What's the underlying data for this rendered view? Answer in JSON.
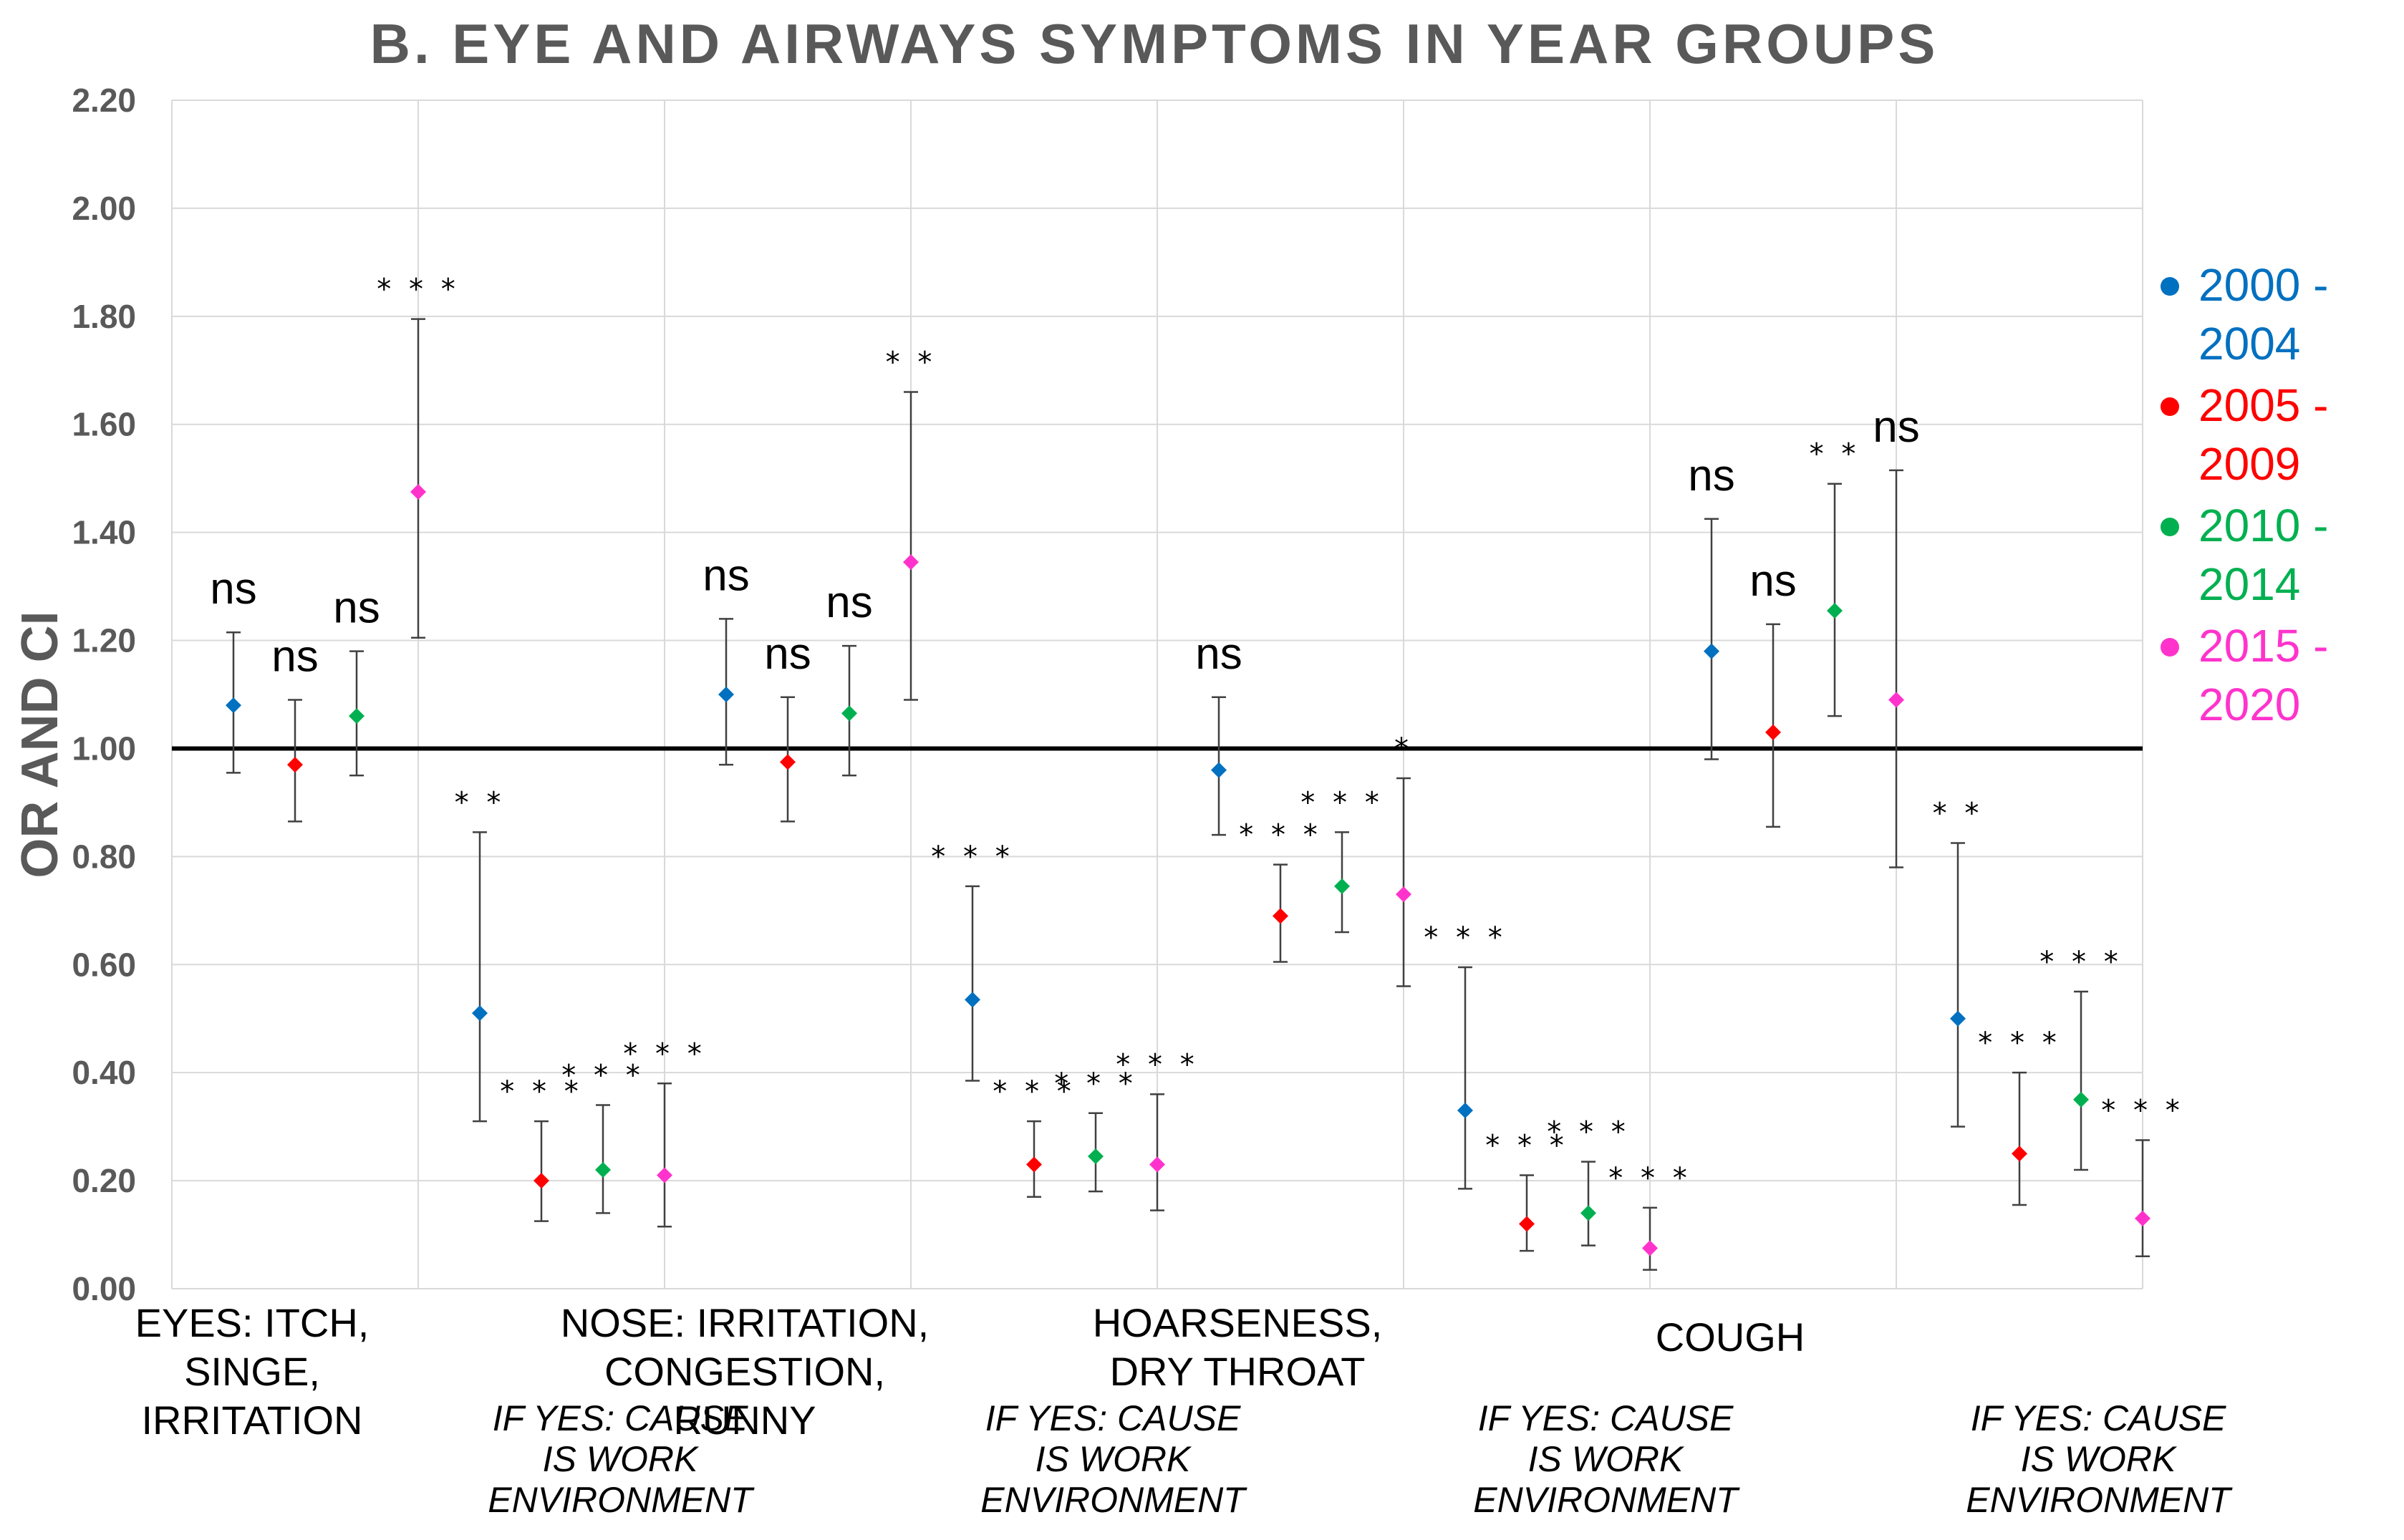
{
  "chart_data": {
    "type": "scatter",
    "title": "B. EYE AND AIRWAYS SYMPTOMS IN YEAR GROUPS",
    "ylabel": "OR AND CI",
    "xlabel": "",
    "ylim": [
      0,
      2.2
    ],
    "yticks": [
      "0.00",
      "0.20",
      "0.40",
      "0.60",
      "0.80",
      "1.00",
      "1.20",
      "1.40",
      "1.60",
      "1.80",
      "2.00",
      "2.20"
    ],
    "reference_line": 1.0,
    "grid": true,
    "legend_position": "right",
    "categories": [
      {
        "lines": [
          "EYES: ITCH,",
          "SINGE,",
          "IRRITATION"
        ],
        "italic": false
      },
      {
        "lines": [
          "IF YES: CAUSE",
          "IS WORK",
          "ENVIRONMENT"
        ],
        "italic": true
      },
      {
        "lines": [
          "NOSE: IRRITATION,",
          "CONGESTION,",
          "RUNNY"
        ],
        "italic": false
      },
      {
        "lines": [
          "IF YES: CAUSE",
          "IS WORK",
          "ENVIRONMENT"
        ],
        "italic": true
      },
      {
        "lines": [
          "HOARSENESS,",
          "DRY THROAT"
        ],
        "italic": false
      },
      {
        "lines": [
          "IF YES: CAUSE",
          "IS WORK",
          "ENVIRONMENT"
        ],
        "italic": true
      },
      {
        "lines": [
          "COUGH"
        ],
        "italic": false
      },
      {
        "lines": [
          "IF YES: CAUSE",
          "IS WORK",
          "ENVIRONMENT"
        ],
        "italic": true
      }
    ],
    "series": [
      {
        "name": "2000 - 2004",
        "color": "#0070C0",
        "values": [
          1.08,
          0.51,
          1.1,
          0.535,
          0.96,
          0.33,
          1.18,
          0.5
        ],
        "lower": [
          0.955,
          0.31,
          0.97,
          0.385,
          0.84,
          0.185,
          0.98,
          0.3
        ],
        "upper": [
          1.215,
          0.845,
          1.24,
          0.745,
          1.095,
          0.595,
          1.425,
          0.825
        ],
        "sig": [
          "ns",
          "**",
          "ns",
          "***",
          "ns",
          "***",
          "ns",
          "**"
        ]
      },
      {
        "name": "2005 - 2009",
        "color": "#FF0000",
        "values": [
          0.97,
          0.2,
          0.975,
          0.23,
          0.69,
          0.12,
          1.03,
          0.25
        ],
        "lower": [
          0.865,
          0.125,
          0.865,
          0.17,
          0.605,
          0.07,
          0.855,
          0.155
        ],
        "upper": [
          1.09,
          0.31,
          1.095,
          0.31,
          0.785,
          0.21,
          1.23,
          0.4
        ],
        "sig": [
          "ns",
          "***",
          "ns",
          "***",
          "***",
          "***",
          "ns",
          "***"
        ]
      },
      {
        "name": "2010 - 2014",
        "color": "#00B050",
        "values": [
          1.06,
          0.22,
          1.065,
          0.245,
          0.745,
          0.14,
          1.255,
          0.35
        ],
        "lower": [
          0.95,
          0.14,
          0.95,
          0.18,
          0.66,
          0.08,
          1.06,
          0.22
        ],
        "upper": [
          1.18,
          0.34,
          1.19,
          0.325,
          0.845,
          0.235,
          1.49,
          0.55
        ],
        "sig": [
          "ns",
          "***",
          "ns",
          "***",
          "***",
          "***",
          "**",
          "***"
        ]
      },
      {
        "name": "2015 - 2020",
        "color": "#FF33CC",
        "values": [
          1.475,
          0.21,
          1.345,
          0.23,
          0.73,
          0.075,
          1.09,
          0.13
        ],
        "lower": [
          1.205,
          0.115,
          1.09,
          0.145,
          0.56,
          0.035,
          0.78,
          0.06
        ],
        "upper": [
          1.795,
          0.38,
          1.66,
          0.36,
          0.945,
          0.15,
          1.515,
          0.275
        ],
        "sig": [
          "***",
          "***",
          "**",
          "***",
          "*",
          "***",
          "ns",
          "***"
        ]
      }
    ]
  },
  "legend": {
    "items": [
      {
        "line1": "2000 -",
        "line2": "2004",
        "color": "#0070C0"
      },
      {
        "line1": "2005 -",
        "line2": "2009",
        "color": "#FF0000"
      },
      {
        "line1": "2010 -",
        "line2": "2014",
        "color": "#00B050"
      },
      {
        "line1": "2015 -",
        "line2": "2020",
        "color": "#FF33CC"
      }
    ]
  }
}
